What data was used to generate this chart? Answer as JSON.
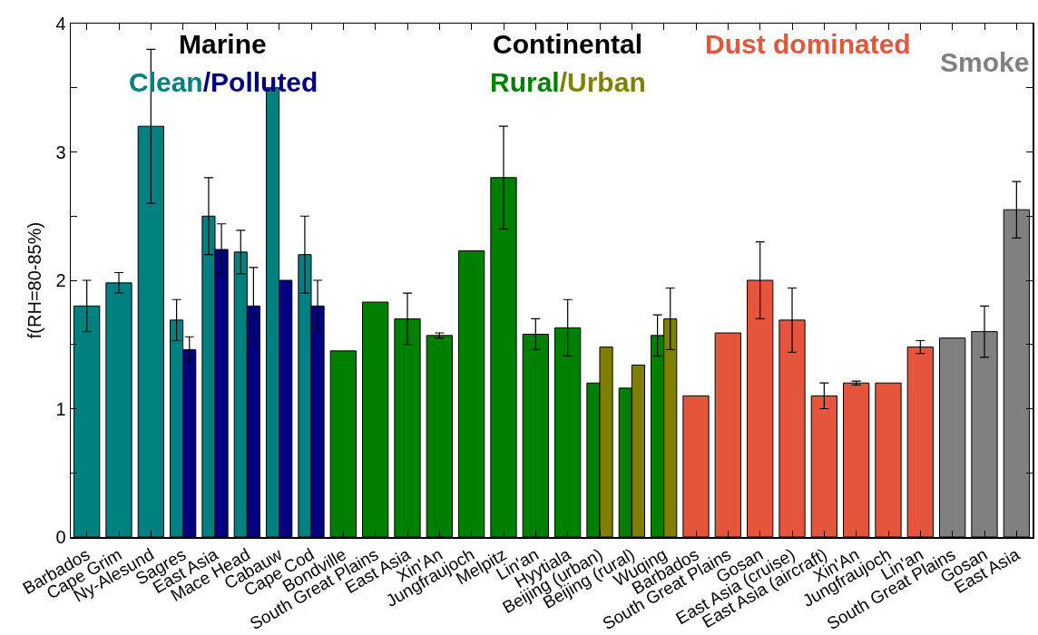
{
  "chart_data": {
    "type": "bar",
    "ylabel": "f(RH=80-85%)",
    "categories": [
      "Barbados",
      "Cape Grim",
      "Ny-Alesund",
      "Sagres",
      "East Asia",
      "Mace Head",
      "Cabauw",
      "Cape Cod",
      "Bondville",
      "South Great Plains",
      "East Asia",
      "Xin'An",
      "Jungfraujoch",
      "Melpitz",
      "Lin'an",
      "Hyytiala",
      "Beijing (urban)",
      "Beijing (rural)",
      "Wuqing",
      "Barbados",
      "South Great Plains",
      "Gosan",
      "East Asia (cruise)",
      "East Asia (aircraft)",
      "Xin'An",
      "Jungfraujoch",
      "Lin'an",
      "South Great Plains",
      "Gosan",
      "East Asia"
    ],
    "series": [
      {
        "name": "Clean",
        "color": "#008080",
        "values": [
          1.8,
          1.98,
          3.2,
          1.69,
          2.5,
          2.22,
          3.5,
          2.2,
          null,
          null,
          null,
          null,
          null,
          null,
          null,
          null,
          null,
          null,
          null,
          null,
          null,
          null,
          null,
          null,
          null,
          null,
          null,
          null,
          null,
          null
        ],
        "errors": [
          0.2,
          0.08,
          0.6,
          0.16,
          0.3,
          0.17,
          null,
          0.3,
          null,
          null,
          null,
          null,
          null,
          null,
          null,
          null,
          null,
          null,
          null,
          null,
          null,
          null,
          null,
          null,
          null,
          null,
          null,
          null,
          null,
          null
        ]
      },
      {
        "name": "Polluted",
        "color": "#000080",
        "values": [
          null,
          null,
          null,
          1.46,
          2.24,
          1.8,
          2.0,
          1.8,
          null,
          null,
          null,
          null,
          null,
          null,
          null,
          null,
          null,
          null,
          null,
          null,
          null,
          null,
          null,
          null,
          null,
          null,
          null,
          null,
          null,
          null
        ],
        "errors": [
          null,
          null,
          null,
          0.1,
          0.2,
          0.3,
          null,
          0.2,
          null,
          null,
          null,
          null,
          null,
          null,
          null,
          null,
          null,
          null,
          null,
          null,
          null,
          null,
          null,
          null,
          null,
          null,
          null,
          null,
          null,
          null
        ]
      },
      {
        "name": "Rural",
        "color": "#008000",
        "values": [
          null,
          null,
          null,
          null,
          null,
          null,
          null,
          null,
          1.45,
          1.83,
          1.7,
          1.57,
          2.23,
          2.8,
          1.58,
          1.63,
          1.2,
          1.16,
          1.57,
          null,
          null,
          null,
          null,
          null,
          null,
          null,
          null,
          null,
          null,
          null
        ],
        "errors": [
          null,
          null,
          null,
          null,
          null,
          null,
          null,
          null,
          null,
          null,
          0.2,
          0.02,
          null,
          0.4,
          0.12,
          0.22,
          null,
          null,
          0.16,
          null,
          null,
          null,
          null,
          null,
          null,
          null,
          null,
          null,
          null,
          null
        ]
      },
      {
        "name": "Urban",
        "color": "#808000",
        "values": [
          null,
          null,
          null,
          null,
          null,
          null,
          null,
          null,
          null,
          null,
          null,
          null,
          null,
          null,
          null,
          null,
          1.48,
          1.34,
          1.7,
          null,
          null,
          null,
          null,
          null,
          null,
          null,
          null,
          null,
          null,
          null
        ],
        "errors": [
          null,
          null,
          null,
          null,
          null,
          null,
          null,
          null,
          null,
          null,
          null,
          null,
          null,
          null,
          null,
          null,
          null,
          null,
          0.24,
          null,
          null,
          null,
          null,
          null,
          null,
          null,
          null,
          null,
          null,
          null
        ]
      },
      {
        "name": "Dust dominated",
        "color": "#e5553b",
        "values": [
          null,
          null,
          null,
          null,
          null,
          null,
          null,
          null,
          null,
          null,
          null,
          null,
          null,
          null,
          null,
          null,
          null,
          null,
          null,
          1.1,
          1.59,
          2.0,
          1.69,
          1.1,
          1.2,
          1.2,
          1.48,
          null,
          null,
          null
        ],
        "errors": [
          null,
          null,
          null,
          null,
          null,
          null,
          null,
          null,
          null,
          null,
          null,
          null,
          null,
          null,
          null,
          null,
          null,
          null,
          null,
          null,
          null,
          0.3,
          0.25,
          0.1,
          0.015,
          null,
          0.05,
          null,
          null,
          null
        ]
      },
      {
        "name": "Smoke",
        "color": "#808080",
        "values": [
          null,
          null,
          null,
          null,
          null,
          null,
          null,
          null,
          null,
          null,
          null,
          null,
          null,
          null,
          null,
          null,
          null,
          null,
          null,
          null,
          null,
          null,
          null,
          null,
          null,
          null,
          null,
          1.55,
          1.6,
          2.55
        ],
        "errors": [
          null,
          null,
          null,
          null,
          null,
          null,
          null,
          null,
          null,
          null,
          null,
          null,
          null,
          null,
          null,
          null,
          null,
          null,
          null,
          null,
          null,
          null,
          null,
          null,
          null,
          null,
          null,
          null,
          0.2,
          0.22
        ]
      }
    ],
    "annotations": [
      "Marine",
      "/",
      "Continental",
      "/"
    ],
    "ylim": [
      0,
      4
    ],
    "yticks": [
      0,
      {
        "value": 0.5,
        "label": null
      },
      1,
      {
        "value": 1.5,
        "label": null
      },
      2,
      {
        "value": 2.5,
        "label": null
      },
      3,
      {
        "value": 3.5,
        "label": null
      },
      4
    ],
    "grid": false,
    "legend": "top"
  }
}
